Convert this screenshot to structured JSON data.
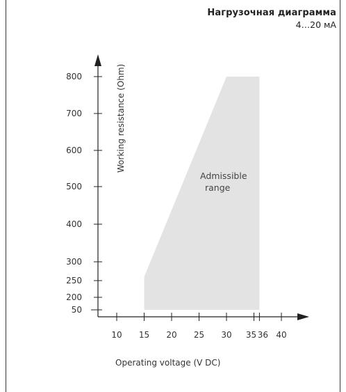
{
  "header": {
    "title": "Нагрузочная диаграмма",
    "subtitle": "4…20 мА"
  },
  "chart_data": {
    "type": "area",
    "xlabel": "Operating voltage  (V DC)",
    "ylabel": "Working resistance  (Ohm)",
    "x_ticks": [
      10,
      15,
      20,
      25,
      30,
      35,
      36,
      40
    ],
    "x_tick_labels": [
      "10",
      "15",
      "20",
      "25",
      "30",
      "35",
      "36",
      "40"
    ],
    "y_ticks": [
      50,
      200,
      250,
      300,
      400,
      500,
      600,
      700,
      800
    ],
    "y_tick_labels": [
      "50",
      "200",
      "250",
      "300",
      "400",
      "500",
      "600",
      "700",
      "800"
    ],
    "region": {
      "label_line1": "Admissible",
      "label_line2": "range",
      "color": "#e3e3e3",
      "polygon": [
        [
          15,
          50
        ],
        [
          15,
          260
        ],
        [
          30,
          800
        ],
        [
          36,
          800
        ],
        [
          36,
          50
        ]
      ]
    },
    "axis_color": "#222222",
    "grid": false
  }
}
